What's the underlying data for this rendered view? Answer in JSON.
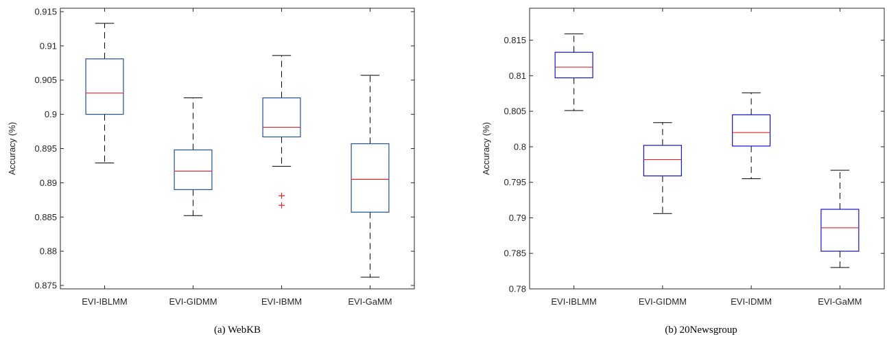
{
  "chart_data": [
    {
      "type": "box",
      "caption": "(a) WebKB",
      "ylabel": "Accuracy (%)",
      "ylim": [
        0.8745,
        0.9155
      ],
      "yticks": [
        0.875,
        0.88,
        0.885,
        0.89,
        0.895,
        0.9,
        0.905,
        0.91,
        0.915
      ],
      "ytick_labels": [
        "0.875",
        "0.88",
        "0.885",
        "0.89",
        "0.895",
        "0.9",
        "0.905",
        "0.91",
        "0.915"
      ],
      "categories": [
        "EVI-IBLMM",
        "EVI-GIDMM",
        "EVI-IBMM",
        "EVI-GaMM"
      ],
      "box_color": "#1f4e9a",
      "median_color": "#e0252b",
      "whisker_color": "#000000",
      "outlier_color": "#e0252b",
      "boxes": [
        {
          "min": 0.8929,
          "q1": 0.9,
          "median": 0.9031,
          "q3": 0.9081,
          "max": 0.9133,
          "outliers": []
        },
        {
          "min": 0.8852,
          "q1": 0.889,
          "median": 0.8917,
          "q3": 0.8948,
          "max": 0.9024,
          "outliers": []
        },
        {
          "min": 0.8924,
          "q1": 0.8967,
          "median": 0.8981,
          "q3": 0.9024,
          "max": 0.9086,
          "outliers": [
            0.8881,
            0.8867
          ]
        },
        {
          "min": 0.8762,
          "q1": 0.8857,
          "median": 0.8905,
          "q3": 0.8957,
          "max": 0.9057,
          "outliers": []
        }
      ]
    },
    {
      "type": "box",
      "caption": "(b) 20Newsgroup",
      "ylabel": "Accuracy (%)",
      "ylim": [
        0.78,
        0.8195
      ],
      "yticks": [
        0.78,
        0.785,
        0.79,
        0.795,
        0.8,
        0.805,
        0.81,
        0.815
      ],
      "ytick_labels": [
        "0.78",
        "0.785",
        "0.79",
        "0.795",
        "0.8",
        "0.805",
        "0.81",
        "0.815"
      ],
      "categories": [
        "EVI-IBLMM",
        "EVI-GIDMM",
        "EVI-IDMM",
        "EVI-GaMM"
      ],
      "box_color": "#1010d0",
      "median_color": "#e0252b",
      "whisker_color": "#000000",
      "outlier_color": "#e0252b",
      "boxes": [
        {
          "min": 0.8051,
          "q1": 0.8097,
          "median": 0.8112,
          "q3": 0.8133,
          "max": 0.8159,
          "outliers": []
        },
        {
          "min": 0.7906,
          "q1": 0.7959,
          "median": 0.7982,
          "q3": 0.8002,
          "max": 0.8034,
          "outliers": []
        },
        {
          "min": 0.7955,
          "q1": 0.8001,
          "median": 0.802,
          "q3": 0.8045,
          "max": 0.8076,
          "outliers": []
        },
        {
          "min": 0.783,
          "q1": 0.7853,
          "median": 0.7886,
          "q3": 0.7912,
          "max": 0.7967,
          "outliers": []
        }
      ]
    }
  ]
}
